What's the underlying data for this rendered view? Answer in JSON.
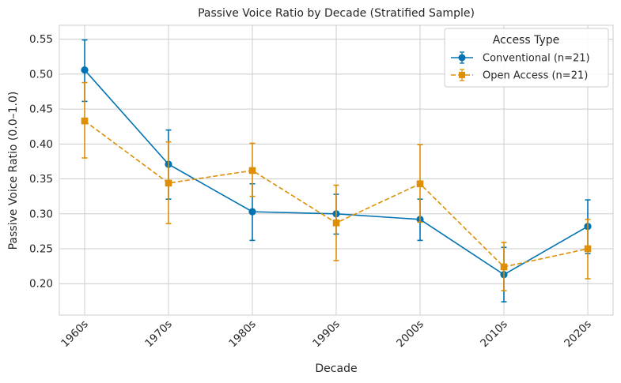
{
  "chart_data": {
    "type": "line",
    "title": "Passive Voice Ratio by Decade (Stratified Sample)",
    "xlabel": "Decade",
    "ylabel": "Passive Voice Ratio (0.0–1.0)",
    "categories": [
      "1960s",
      "1970s",
      "1980s",
      "1990s",
      "2000s",
      "2010s",
      "2020s"
    ],
    "ylim": [
      0.155,
      0.57
    ],
    "yticks": [
      "0.20",
      "0.25",
      "0.30",
      "0.35",
      "0.40",
      "0.45",
      "0.50",
      "0.55"
    ],
    "grid": true,
    "legend": {
      "title": "Access Type",
      "position": "top-right"
    },
    "series": [
      {
        "name": "Conventional (n=21)",
        "values": [
          0.506,
          0.371,
          0.303,
          0.3,
          0.292,
          0.213,
          0.282
        ],
        "err_low": [
          0.461,
          0.321,
          0.262,
          0.271,
          0.262,
          0.174,
          0.243
        ],
        "err_high": [
          0.549,
          0.42,
          0.343,
          0.328,
          0.321,
          0.252,
          0.32
        ],
        "color": "#0173b2",
        "marker": "circle",
        "linestyle": "solid"
      },
      {
        "name": "Open Access (n=21)",
        "values": [
          0.433,
          0.344,
          0.362,
          0.287,
          0.343,
          0.224,
          0.25
        ],
        "err_low": [
          0.38,
          0.286,
          0.325,
          0.233,
          0.288,
          0.19,
          0.207
        ],
        "err_high": [
          0.488,
          0.403,
          0.401,
          0.341,
          0.399,
          0.259,
          0.292
        ],
        "color": "#de8f05",
        "marker": "square",
        "linestyle": "dashed"
      }
    ]
  }
}
